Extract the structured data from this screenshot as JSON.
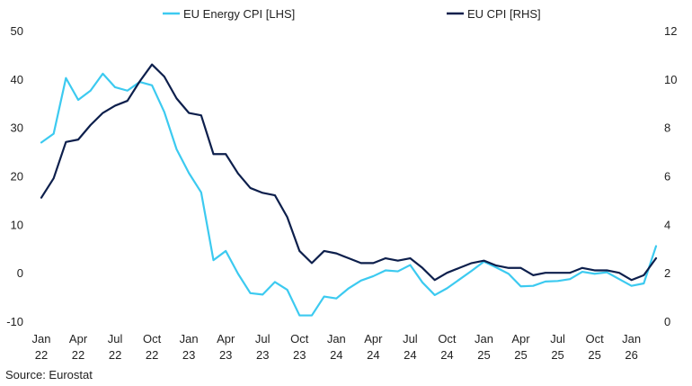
{
  "chart_data": {
    "type": "line",
    "title": "",
    "source": "Source: Eurostat",
    "x": [
      "2022-01",
      "2022-02",
      "2022-03",
      "2022-04",
      "2022-05",
      "2022-06",
      "2022-07",
      "2022-08",
      "2022-09",
      "2022-10",
      "2022-11",
      "2022-12",
      "2023-01",
      "2023-02",
      "2023-03",
      "2023-04",
      "2023-05",
      "2023-06",
      "2023-07",
      "2023-08",
      "2023-09",
      "2023-10",
      "2023-11",
      "2023-12",
      "2024-01",
      "2024-02",
      "2024-03",
      "2024-04",
      "2024-05",
      "2024-06",
      "2024-07",
      "2024-08",
      "2024-09",
      "2024-10",
      "2024-11",
      "2024-12",
      "2025-01",
      "2025-02",
      "2025-03",
      "2025-04",
      "2025-05",
      "2025-06",
      "2025-07",
      "2025-08",
      "2025-09",
      "2025-10",
      "2025-11",
      "2025-12",
      "2026-01",
      "2026-02",
      "2026-03"
    ],
    "x_ticks": [
      {
        "month": "Jan",
        "year": "22"
      },
      {
        "month": "Apr",
        "year": "22"
      },
      {
        "month": "Jul",
        "year": "22"
      },
      {
        "month": "Oct",
        "year": "22"
      },
      {
        "month": "Jan",
        "year": "23"
      },
      {
        "month": "Apr",
        "year": "23"
      },
      {
        "month": "Jul",
        "year": "23"
      },
      {
        "month": "Oct",
        "year": "23"
      },
      {
        "month": "Jan",
        "year": "24"
      },
      {
        "month": "Apr",
        "year": "24"
      },
      {
        "month": "Jul",
        "year": "24"
      },
      {
        "month": "Oct",
        "year": "24"
      },
      {
        "month": "Jan",
        "year": "25"
      },
      {
        "month": "Apr",
        "year": "25"
      },
      {
        "month": "Jul",
        "year": "25"
      },
      {
        "month": "Oct",
        "year": "25"
      },
      {
        "month": "Jan",
        "year": "26"
      }
    ],
    "y_left": {
      "min": -10,
      "max": 50,
      "ticks": [
        -10,
        0,
        10,
        20,
        30,
        40,
        50
      ]
    },
    "y_right": {
      "min": 0,
      "max": 12,
      "ticks": [
        0,
        2,
        4,
        6,
        8,
        10,
        12
      ]
    },
    "grid": false,
    "legend_position": "top",
    "series": [
      {
        "name": "EU Energy CPI [LHS]",
        "axis": "left",
        "color": "#3ccaf0",
        "values": [
          26.9,
          28.7,
          40.2,
          35.7,
          37.6,
          41.1,
          38.3,
          37.6,
          39.4,
          38.7,
          33.2,
          25.5,
          20.6,
          16.6,
          2.6,
          4.5,
          -0.2,
          -4.2,
          -4.5,
          -1.9,
          -3.5,
          -8.8,
          -8.8,
          -4.9,
          -5.3,
          -3.2,
          -1.6,
          -0.7,
          0.5,
          0.3,
          1.6,
          -2.0,
          -4.6,
          -3.2,
          -1.4,
          0.4,
          2.3,
          1.1,
          -0.2,
          -2.8,
          -2.7,
          -1.8,
          -1.7,
          -1.3,
          0.2,
          -0.2,
          0.1,
          -1.3,
          -2.7,
          -2.2,
          5.5
        ]
      },
      {
        "name": "EU CPI [RHS]",
        "axis": "right",
        "color": "#0d1f4c",
        "values": [
          5.1,
          5.9,
          7.4,
          7.5,
          8.1,
          8.6,
          8.9,
          9.1,
          9.9,
          10.6,
          10.1,
          9.2,
          8.6,
          8.5,
          6.9,
          6.9,
          6.1,
          5.5,
          5.3,
          5.2,
          4.3,
          2.9,
          2.4,
          2.9,
          2.8,
          2.6,
          2.4,
          2.4,
          2.6,
          2.5,
          2.6,
          2.2,
          1.7,
          2.0,
          2.2,
          2.4,
          2.5,
          2.3,
          2.2,
          2.2,
          1.9,
          2.0,
          2.0,
          2.0,
          2.2,
          2.1,
          2.1,
          2.0,
          1.7,
          1.9,
          2.6
        ]
      }
    ]
  }
}
